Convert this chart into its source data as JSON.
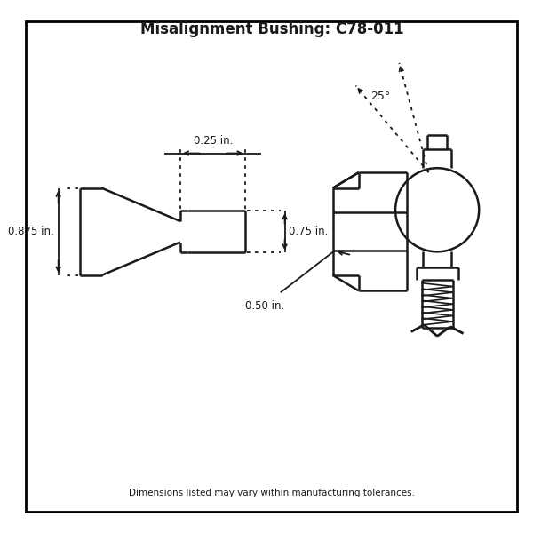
{
  "title": "Misalignment Bushing: C78-011",
  "footer": "Dimensions listed may vary within manufacturing tolerances.",
  "dim_025": "0.25 in.",
  "dim_075": "0.75 in.",
  "dim_0875": "0.875 in.",
  "dim_050": "0.50 in.",
  "angle_label": "25°",
  "bg_color": "#ffffff",
  "line_color": "#1a1a1a",
  "border_color": "#000000"
}
